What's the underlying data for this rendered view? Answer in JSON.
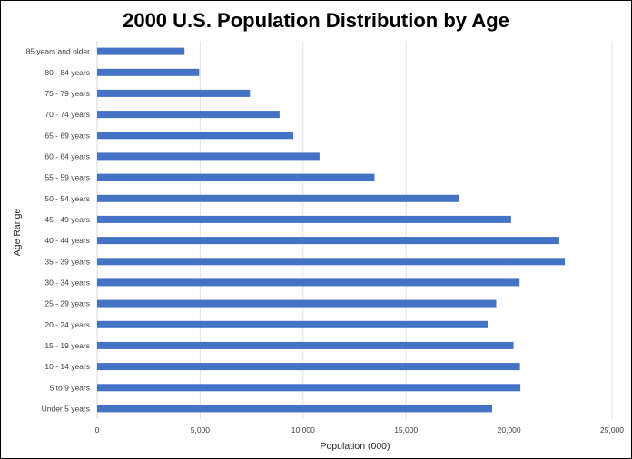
{
  "chart_data": {
    "type": "bar",
    "orientation": "horizontal",
    "title": "2000 U.S. Population Distribution by Age",
    "xlabel": "Population (000)",
    "ylabel": "Age Range",
    "xlim": [
      0,
      25000
    ],
    "xticks": [
      0,
      5000,
      10000,
      15000,
      20000,
      25000
    ],
    "xtick_labels": [
      "0",
      "5,000",
      "10,000",
      "15,000",
      "20,000",
      "25,000"
    ],
    "grid": "vertical",
    "bar_color": "#4472C4",
    "categories": [
      "85 years and older",
      "80 - 84 years",
      "75 - 79 years",
      "70 - 74 years",
      "65 - 69 years",
      "60 - 64 years",
      "55 - 59 years",
      "50 - 54 years",
      "45 - 49 years",
      "40 - 44 years",
      "35 - 39 years",
      "30 - 34 years",
      "25 - 29 years",
      "20 - 24 years",
      "15 - 19 years",
      "10 - 14 years",
      "5 to 9 years",
      "Under 5 years"
    ],
    "values": [
      4240,
      4950,
      7420,
      8860,
      9530,
      10800,
      13470,
      17590,
      20100,
      22440,
      22710,
      20510,
      19380,
      18960,
      20220,
      20530,
      20550,
      19180
    ]
  }
}
